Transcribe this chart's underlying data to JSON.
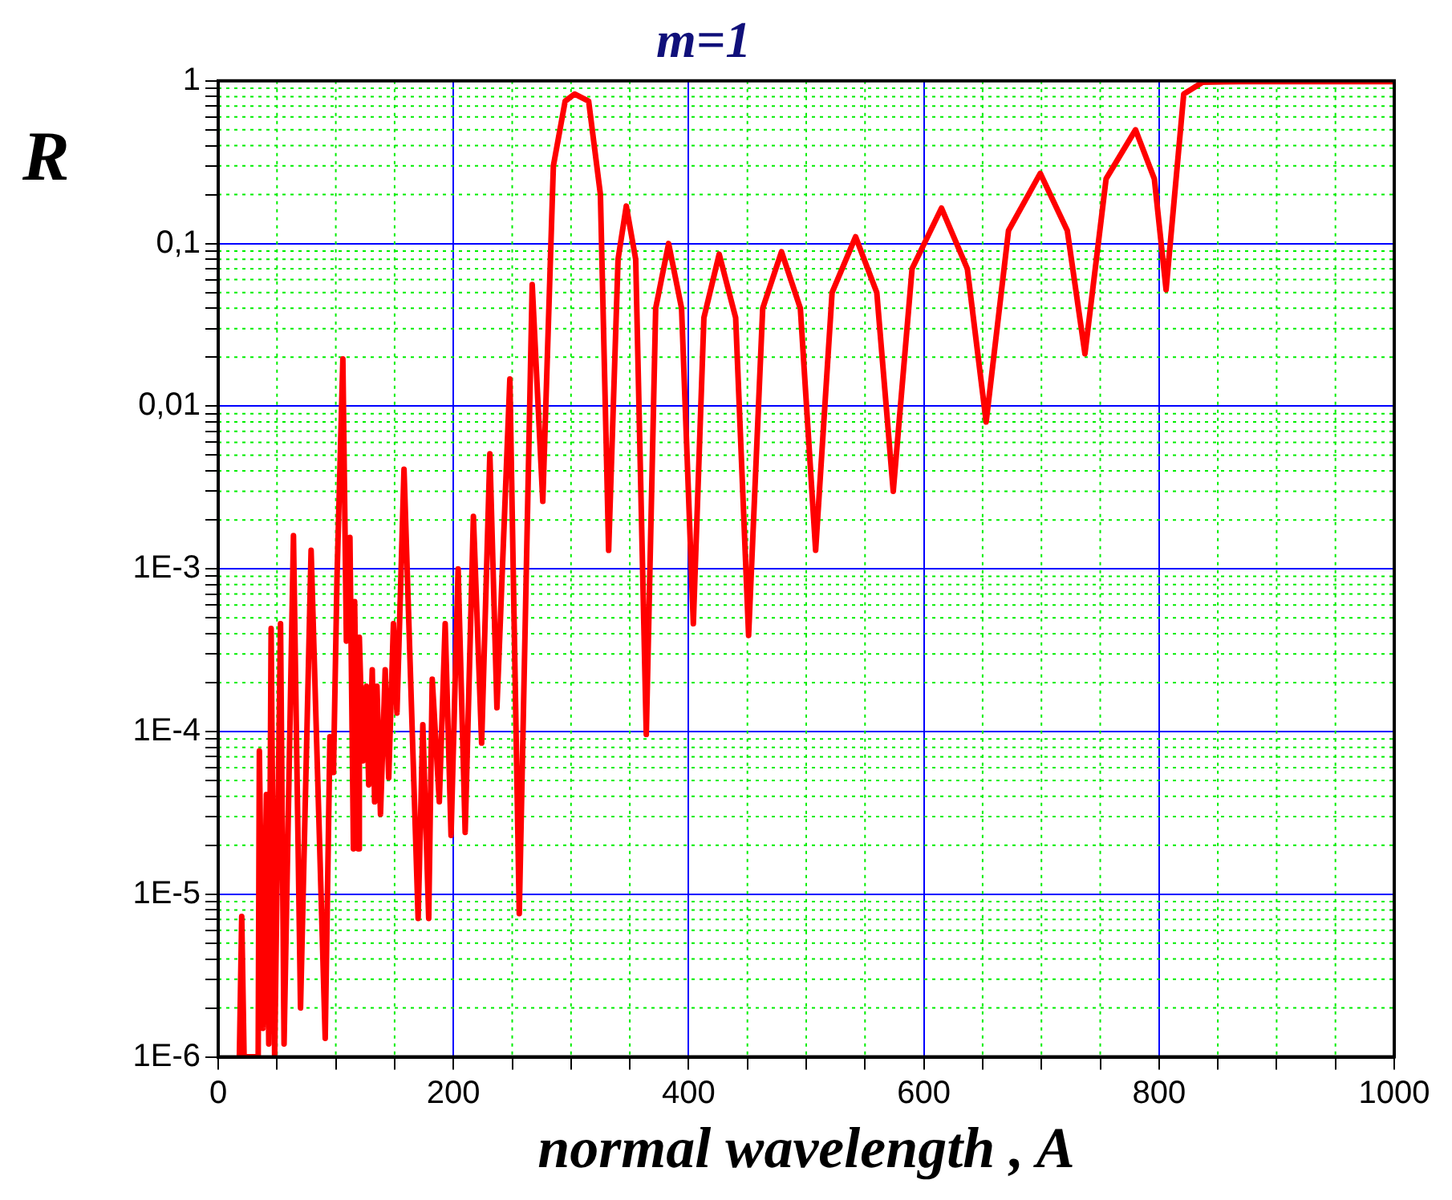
{
  "chart_data": {
    "type": "line",
    "title": "m=1",
    "xlabel": "normal wavelength , A",
    "ylabel": "R",
    "xlim": [
      0,
      1000
    ],
    "xticks": [
      0,
      {
        "value": 50,
        "label": null
      },
      {
        "value": 100,
        "label": null
      },
      {
        "value": 150,
        "label": null
      },
      200,
      {
        "value": 250,
        "label": null
      },
      {
        "value": 300,
        "label": null
      },
      {
        "value": 350,
        "label": null
      },
      400,
      {
        "value": 450,
        "label": null
      },
      {
        "value": 500,
        "label": null
      },
      {
        "value": 550,
        "label": null
      },
      600,
      {
        "value": 650,
        "label": null
      },
      {
        "value": 700,
        "label": null
      },
      {
        "value": 750,
        "label": null
      },
      800,
      {
        "value": 850,
        "label": null
      },
      {
        "value": 900,
        "label": null
      },
      {
        "value": 950,
        "label": null
      },
      1000
    ],
    "ylim": [
      1e-06,
      1
    ],
    "log": "y",
    "yticks": [
      {
        "value": 1e-06,
        "label": "1E-6"
      },
      {
        "value": 2e-06,
        "label": null
      },
      {
        "value": 3e-06,
        "label": null
      },
      {
        "value": 4e-06,
        "label": null
      },
      {
        "value": 5e-06,
        "label": null
      },
      {
        "value": 6e-06,
        "label": null
      },
      {
        "value": 7e-06,
        "label": null
      },
      {
        "value": 8e-06,
        "label": null
      },
      {
        "value": 9e-06,
        "label": null
      },
      {
        "value": 1e-05,
        "label": "1E-5"
      },
      {
        "value": 2e-05,
        "label": null
      },
      {
        "value": 3e-05,
        "label": null
      },
      {
        "value": 4e-05,
        "label": null
      },
      {
        "value": 5e-05,
        "label": null
      },
      {
        "value": 6e-05,
        "label": null
      },
      {
        "value": 7e-05,
        "label": null
      },
      {
        "value": 8e-05,
        "label": null
      },
      {
        "value": 9e-05,
        "label": null
      },
      {
        "value": 0.0001,
        "label": "1E-4"
      },
      {
        "value": 0.0002,
        "label": null
      },
      {
        "value": 0.0003,
        "label": null
      },
      {
        "value": 0.0004,
        "label": null
      },
      {
        "value": 0.0005,
        "label": null
      },
      {
        "value": 0.0006,
        "label": null
      },
      {
        "value": 0.0007,
        "label": null
      },
      {
        "value": 0.0008,
        "label": null
      },
      {
        "value": 0.0009,
        "label": null
      },
      {
        "value": 0.001,
        "label": "1E-3"
      },
      {
        "value": 0.002,
        "label": null
      },
      {
        "value": 0.003,
        "label": null
      },
      {
        "value": 0.004,
        "label": null
      },
      {
        "value": 0.005,
        "label": null
      },
      {
        "value": 0.006,
        "label": null
      },
      {
        "value": 0.007,
        "label": null
      },
      {
        "value": 0.008,
        "label": null
      },
      {
        "value": 0.009,
        "label": null
      },
      {
        "value": 0.01,
        "label": "0,01"
      },
      {
        "value": 0.02,
        "label": null
      },
      {
        "value": 0.03,
        "label": null
      },
      {
        "value": 0.04,
        "label": null
      },
      {
        "value": 0.05,
        "label": null
      },
      {
        "value": 0.06,
        "label": null
      },
      {
        "value": 0.07,
        "label": null
      },
      {
        "value": 0.08,
        "label": null
      },
      {
        "value": 0.09,
        "label": null
      },
      {
        "value": 0.1,
        "label": "0,1"
      },
      {
        "value": 0.2,
        "label": null
      },
      {
        "value": 0.3,
        "label": null
      },
      {
        "value": 0.4,
        "label": null
      },
      {
        "value": 0.5,
        "label": null
      },
      {
        "value": 0.6,
        "label": null
      },
      {
        "value": 0.7,
        "label": null
      },
      {
        "value": 0.8,
        "label": null
      },
      {
        "value": 0.9,
        "label": null
      },
      {
        "value": 1,
        "label": "1"
      }
    ],
    "grid": true,
    "legend": false,
    "line_style": "solid",
    "series": [
      {
        "color": "#ff0000",
        "x": [
          18,
          20,
          22,
          34,
          35,
          38,
          41,
          43,
          45,
          48,
          53,
          56,
          64,
          70,
          79,
          91,
          95,
          98,
          101,
          106,
          109,
          112,
          115,
          116,
          119,
          120,
          123,
          126,
          128,
          131,
          133,
          135,
          138,
          142,
          145,
          149,
          152,
          158,
          170,
          174,
          179,
          182,
          188,
          193,
          198,
          204,
          210,
          217,
          224,
          231,
          237,
          248,
          256,
          267,
          276,
          285,
          295,
          303,
          315,
          325,
          332,
          340,
          347,
          355,
          364,
          372,
          383,
          394,
          404,
          413,
          426,
          440,
          451,
          463,
          479,
          495,
          508,
          522,
          542,
          560,
          574,
          590,
          615,
          637,
          653,
          672,
          699,
          722,
          737,
          755,
          780,
          796,
          806,
          821,
          837,
          870,
          1000
        ],
        "values": [
          1e-06,
          7.3e-06,
          1e-06,
          1e-06,
          7.6e-05,
          1.5e-06,
          4.1e-05,
          1.2e-06,
          0.00043,
          1e-06,
          0.00046,
          1.2e-06,
          0.0016,
          2e-06,
          0.0013,
          1.3e-06,
          9.3e-05,
          5.6e-05,
          0.00087,
          0.0195,
          0.00036,
          0.00156,
          1.9e-05,
          0.00063,
          1.9e-05,
          0.00038,
          6.6e-05,
          0.00019,
          4.7e-05,
          0.00024,
          3.7e-05,
          0.00019,
          3.1e-05,
          0.00024,
          5.2e-05,
          0.00046,
          0.00013,
          0.0041,
          7.1e-06,
          0.00011,
          7.1e-06,
          0.00021,
          3.7e-05,
          0.00046,
          2.3e-05,
          0.001,
          2.4e-05,
          0.0021,
          8.5e-05,
          0.0051,
          0.00014,
          0.0147,
          7.6e-06,
          0.056,
          0.0026,
          0.3,
          0.75,
          0.83,
          0.75,
          0.2,
          0.0013,
          0.08,
          0.17,
          0.08,
          9.6e-05,
          0.04,
          0.1,
          0.04,
          0.00046,
          0.035,
          0.086,
          0.035,
          0.00039,
          0.04,
          0.089,
          0.04,
          0.0013,
          0.05,
          0.11,
          0.05,
          0.003,
          0.07,
          0.165,
          0.07,
          0.008,
          0.12,
          0.27,
          0.12,
          0.021,
          0.25,
          0.5,
          0.25,
          0.052,
          0.83,
          0.98,
          0.99,
          0.99
        ]
      }
    ]
  }
}
